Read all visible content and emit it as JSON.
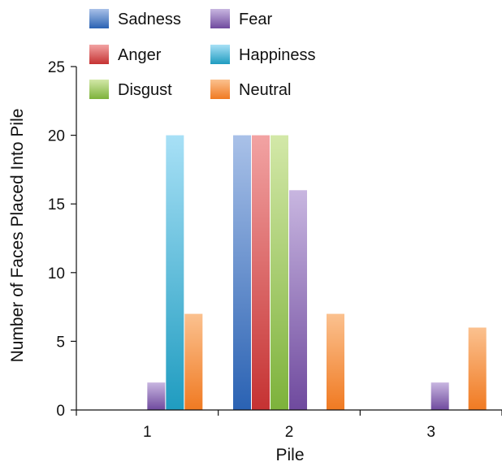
{
  "chart_data": {
    "type": "bar",
    "title": "",
    "xlabel": "Pile",
    "ylabel": "Number of Faces Placed Into Pile",
    "categories": [
      "1",
      "2",
      "3"
    ],
    "ylim": [
      0,
      25
    ],
    "yticks": [
      0,
      5,
      10,
      15,
      20,
      25
    ],
    "grid": false,
    "legend_position": "top",
    "series": [
      {
        "name": "Sadness",
        "values": [
          0,
          20,
          0
        ],
        "color_top": "#a9c1e8",
        "color_bottom": "#2a62b3"
      },
      {
        "name": "Anger",
        "values": [
          0,
          20,
          0
        ],
        "color_top": "#f2a3a3",
        "color_bottom": "#c53232"
      },
      {
        "name": "Disgust",
        "values": [
          0,
          20,
          0
        ],
        "color_top": "#d3e8a8",
        "color_bottom": "#7db23b"
      },
      {
        "name": "Fear",
        "values": [
          2,
          16,
          2
        ],
        "color_top": "#c8b6e0",
        "color_bottom": "#6f4a9e"
      },
      {
        "name": "Happiness",
        "values": [
          20,
          0,
          0
        ],
        "color_top": "#a8e0f6",
        "color_bottom": "#1f9cc0"
      },
      {
        "name": "Neutral",
        "values": [
          7,
          7,
          6
        ],
        "color_top": "#fbc18f",
        "color_bottom": "#f07a22"
      }
    ]
  }
}
